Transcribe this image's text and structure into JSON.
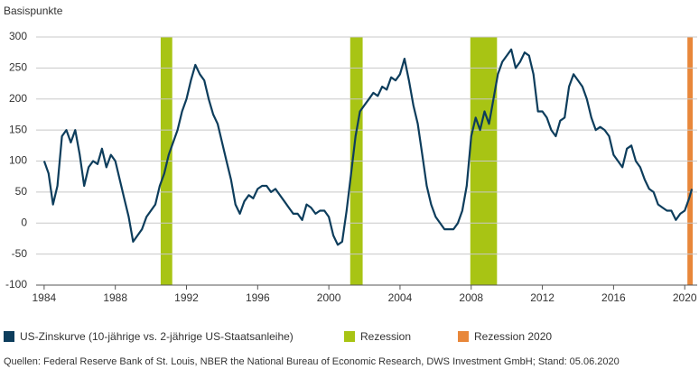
{
  "chart_data": {
    "type": "line",
    "y_label": "Basispunkte",
    "xlim": [
      1983.55,
      2020.7
    ],
    "xticks": [
      1984,
      1988,
      1992,
      1996,
      2000,
      2004,
      2008,
      2012,
      2016,
      2020
    ],
    "ylim": [
      -100,
      300
    ],
    "yticks": [
      -100,
      -50,
      0,
      50,
      100,
      150,
      200,
      250,
      300
    ],
    "grid": true,
    "series": [
      {
        "name": "US-Zinskurve (10-jährige vs. 2-jährige US-Staatsanleihe)",
        "color": "#0d3d5c",
        "x": [
          1984.0,
          1984.25,
          1984.5,
          1984.75,
          1985.0,
          1985.25,
          1985.5,
          1985.75,
          1986.0,
          1986.25,
          1986.5,
          1986.75,
          1987.0,
          1987.25,
          1987.5,
          1987.75,
          1988.0,
          1988.25,
          1988.5,
          1988.75,
          1989.0,
          1989.25,
          1989.5,
          1989.75,
          1990.0,
          1990.25,
          1990.5,
          1990.75,
          1991.0,
          1991.25,
          1991.5,
          1991.75,
          1992.0,
          1992.25,
          1992.5,
          1992.75,
          1993.0,
          1993.25,
          1993.5,
          1993.75,
          1994.0,
          1994.25,
          1994.5,
          1994.75,
          1995.0,
          1995.25,
          1995.5,
          1995.75,
          1996.0,
          1996.25,
          1996.5,
          1996.75,
          1997.0,
          1997.25,
          1997.5,
          1997.75,
          1998.0,
          1998.25,
          1998.5,
          1998.75,
          1999.0,
          1999.25,
          1999.5,
          1999.75,
          2000.0,
          2000.25,
          2000.5,
          2000.75,
          2001.0,
          2001.25,
          2001.5,
          2001.75,
          2002.0,
          2002.25,
          2002.5,
          2002.75,
          2003.0,
          2003.25,
          2003.5,
          2003.75,
          2004.0,
          2004.25,
          2004.5,
          2004.75,
          2005.0,
          2005.25,
          2005.5,
          2005.75,
          2006.0,
          2006.25,
          2006.5,
          2006.75,
          2007.0,
          2007.25,
          2007.5,
          2007.75,
          2008.0,
          2008.25,
          2008.5,
          2008.75,
          2009.0,
          2009.25,
          2009.5,
          2009.75,
          2010.0,
          2010.25,
          2010.5,
          2010.75,
          2011.0,
          2011.25,
          2011.5,
          2011.75,
          2012.0,
          2012.25,
          2012.5,
          2012.75,
          2013.0,
          2013.25,
          2013.5,
          2013.75,
          2014.0,
          2014.25,
          2014.5,
          2014.75,
          2015.0,
          2015.25,
          2015.5,
          2015.75,
          2016.0,
          2016.25,
          2016.5,
          2016.75,
          2017.0,
          2017.25,
          2017.5,
          2017.75,
          2018.0,
          2018.25,
          2018.5,
          2018.75,
          2019.0,
          2019.25,
          2019.5,
          2019.75,
          2020.0,
          2020.25,
          2020.4
        ],
        "values": [
          100,
          80,
          30,
          60,
          140,
          150,
          130,
          150,
          110,
          60,
          90,
          100,
          95,
          120,
          90,
          110,
          100,
          70,
          40,
          10,
          -30,
          -20,
          -10,
          10,
          20,
          30,
          60,
          80,
          110,
          130,
          150,
          180,
          200,
          230,
          255,
          240,
          230,
          200,
          175,
          160,
          130,
          100,
          70,
          30,
          15,
          35,
          45,
          40,
          55,
          60,
          60,
          50,
          55,
          45,
          35,
          25,
          15,
          15,
          5,
          30,
          25,
          15,
          20,
          20,
          10,
          -20,
          -35,
          -30,
          20,
          80,
          140,
          180,
          190,
          200,
          210,
          205,
          220,
          215,
          235,
          230,
          240,
          265,
          230,
          190,
          160,
          110,
          60,
          30,
          10,
          0,
          -10,
          -10,
          -10,
          0,
          20,
          60,
          140,
          170,
          150,
          180,
          160,
          200,
          240,
          260,
          270,
          280,
          250,
          260,
          275,
          270,
          240,
          180,
          180,
          170,
          150,
          140,
          165,
          170,
          220,
          240,
          230,
          220,
          200,
          170,
          150,
          155,
          150,
          140,
          110,
          100,
          90,
          120,
          125,
          100,
          90,
          70,
          55,
          50,
          30,
          25,
          20,
          20,
          5,
          15,
          20,
          40,
          55
        ]
      }
    ],
    "bands": [
      {
        "name": "Rezession",
        "color": "#a8c414",
        "spans": [
          [
            1990.55,
            1991.2
          ],
          [
            2001.2,
            2001.9
          ],
          [
            2007.95,
            2009.45
          ]
        ]
      },
      {
        "name": "Rezession 2020",
        "color": "#e8873a",
        "spans": [
          [
            2020.15,
            2020.45
          ]
        ]
      }
    ],
    "source": "Quellen: Federal Reserve Bank of St. Louis, NBER the National Bureau of Economic Research, DWS Investment GmbH; Stand: 05.06.2020"
  }
}
